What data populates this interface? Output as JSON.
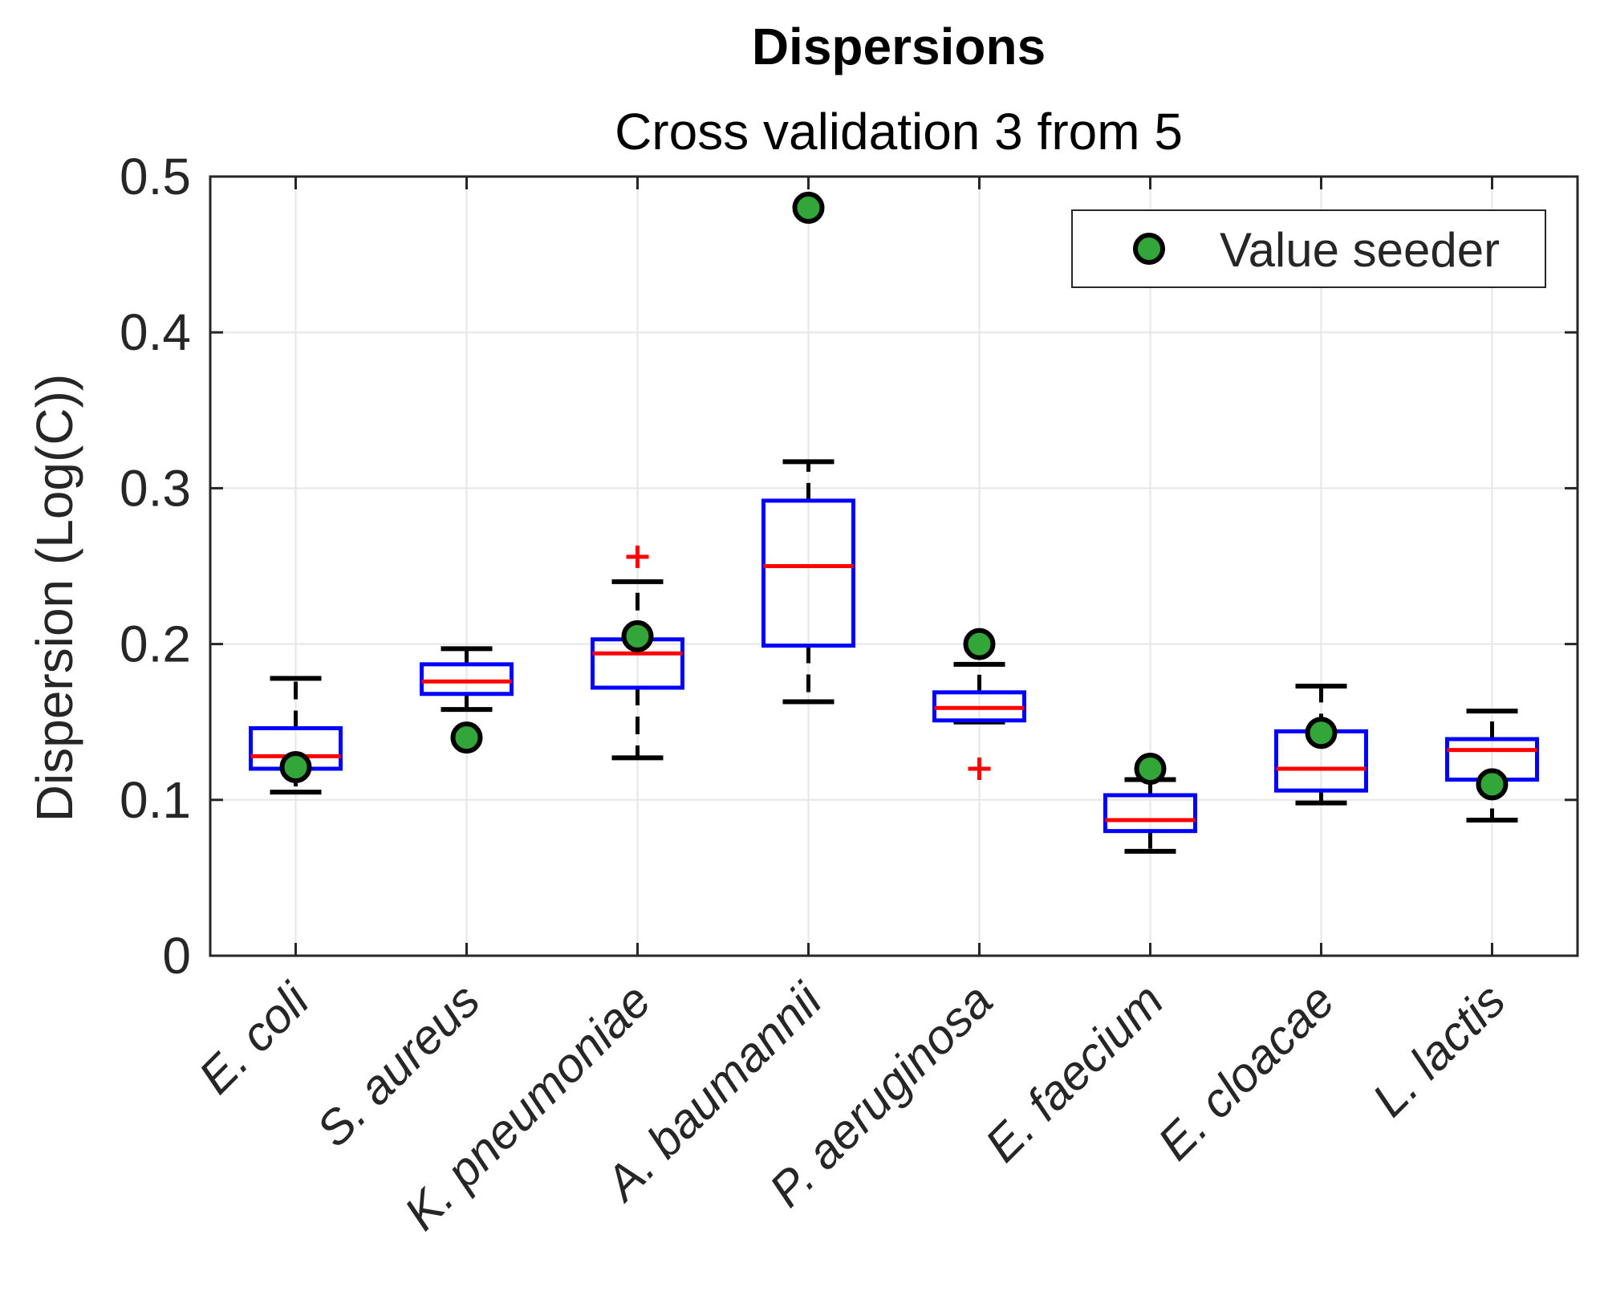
{
  "chart_data": {
    "type": "box",
    "title": "Dispersions",
    "subtitle": "Cross validation 3 from 5",
    "xlabel": "",
    "ylabel": "Dispersion (Log(C))",
    "ylim": [
      0,
      0.5
    ],
    "yticks": [
      0,
      0.1,
      0.2,
      0.3,
      0.4,
      0.5
    ],
    "ytick_labels": [
      "0",
      "0.1",
      "0.2",
      "0.3",
      "0.4",
      "0.5"
    ],
    "grid": true,
    "legend": {
      "position": "top-right",
      "entries": [
        "Value seeder"
      ]
    },
    "colors": {
      "box": "#0000ff",
      "median": "#ff0000",
      "whisker": "#000000",
      "outlier": "#ff0000",
      "seeder_fill": "#33a63a",
      "grid": "#e6e6e6",
      "axis": "#262626"
    },
    "categories": [
      "E. coli",
      "S. aureus",
      "K. pneumoniae",
      "A. baumannii",
      "P. aeruginosa",
      "E. faecium",
      "E. cloacae",
      "L. lactis"
    ],
    "boxes": [
      {
        "whisker_low": 0.105,
        "q1": 0.12,
        "median": 0.128,
        "q3": 0.146,
        "whisker_high": 0.178,
        "outliers": []
      },
      {
        "whisker_low": 0.158,
        "q1": 0.168,
        "median": 0.176,
        "q3": 0.187,
        "whisker_high": 0.197,
        "outliers": []
      },
      {
        "whisker_low": 0.127,
        "q1": 0.172,
        "median": 0.194,
        "q3": 0.203,
        "whisker_high": 0.24,
        "outliers": [
          0.256
        ]
      },
      {
        "whisker_low": 0.163,
        "q1": 0.199,
        "median": 0.25,
        "q3": 0.292,
        "whisker_high": 0.317,
        "outliers": []
      },
      {
        "whisker_low": 0.15,
        "q1": 0.151,
        "median": 0.159,
        "q3": 0.169,
        "whisker_high": 0.187,
        "outliers": [
          0.12
        ]
      },
      {
        "whisker_low": 0.067,
        "q1": 0.08,
        "median": 0.087,
        "q3": 0.103,
        "whisker_high": 0.113,
        "outliers": []
      },
      {
        "whisker_low": 0.098,
        "q1": 0.106,
        "median": 0.12,
        "q3": 0.144,
        "whisker_high": 0.173,
        "outliers": []
      },
      {
        "whisker_low": 0.087,
        "q1": 0.113,
        "median": 0.132,
        "q3": 0.139,
        "whisker_high": 0.157,
        "outliers": []
      }
    ],
    "seeder_values": [
      0.121,
      0.14,
      0.205,
      0.48,
      0.2,
      0.12,
      0.143,
      0.11
    ]
  }
}
